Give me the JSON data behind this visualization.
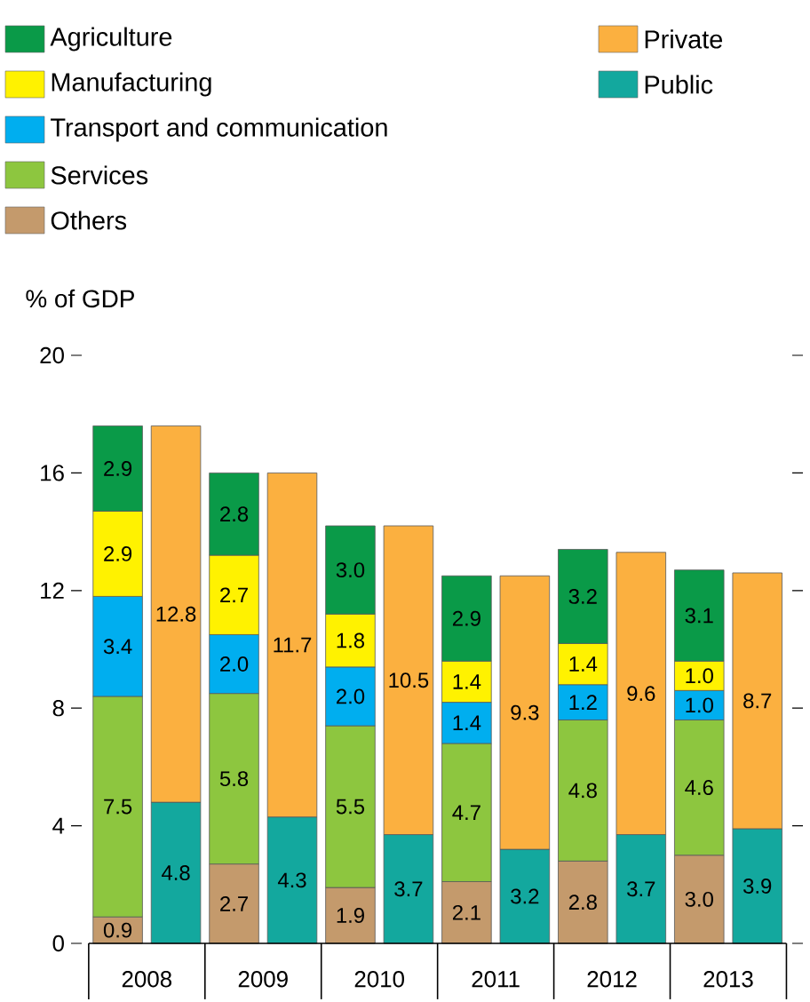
{
  "chart_data": {
    "type": "bar",
    "stacked": true,
    "ylabel": "% of GDP",
    "categories": [
      "2008",
      null,
      "2009",
      null,
      "2010",
      null,
      "2011",
      null,
      "2012",
      null,
      "2013",
      null
    ],
    "series": [
      {
        "name": "Others",
        "color": "#c49a6c",
        "values": [
          0.9,
          null,
          2.7,
          null,
          1.9,
          null,
          2.1,
          null,
          2.8,
          null,
          3.0,
          null
        ],
        "value_labels": [
          "0.9",
          null,
          "2.7",
          null,
          "1.9",
          null,
          "2.1",
          null,
          "2.8",
          null,
          "3.0",
          null
        ]
      },
      {
        "name": "Services",
        "color": "#8dc63f",
        "values": [
          7.5,
          null,
          5.8,
          null,
          5.5,
          null,
          4.7,
          null,
          4.8,
          null,
          4.6,
          null
        ],
        "value_labels": [
          "7.5",
          null,
          "5.8",
          null,
          "5.5",
          null,
          "4.7",
          null,
          "4.8",
          null,
          "4.6",
          null
        ]
      },
      {
        "name": "Transport and communication",
        "color": "#00aeef",
        "values": [
          3.4,
          null,
          2.0,
          null,
          2.0,
          null,
          1.4,
          null,
          1.2,
          null,
          1.0,
          null
        ],
        "value_labels": [
          "3.4",
          null,
          "2.0",
          null,
          "2.0",
          null,
          "1.4",
          null,
          "1.2",
          null,
          "1.0",
          null
        ]
      },
      {
        "name": "Manufacturing",
        "color": "#fff200",
        "values": [
          2.9,
          null,
          2.7,
          null,
          1.8,
          null,
          1.4,
          null,
          1.4,
          null,
          1.0,
          null
        ],
        "value_labels": [
          "2.9",
          null,
          "2.7",
          null,
          "1.8",
          null,
          "1.4",
          null,
          "1.4",
          null,
          "1.0",
          null
        ]
      },
      {
        "name": "Agriculture",
        "color": "#0a9a48",
        "values": [
          2.9,
          null,
          2.8,
          null,
          3.0,
          null,
          2.9,
          null,
          3.2,
          null,
          3.1,
          null
        ],
        "value_labels": [
          "2.9",
          null,
          "2.8",
          null,
          "3.0",
          null,
          "2.9",
          null,
          "3.2",
          null,
          "3.1",
          null
        ]
      },
      {
        "name": "Public",
        "color": "#13a89e",
        "values": [
          null,
          4.8,
          null,
          4.3,
          null,
          3.7,
          null,
          3.2,
          null,
          3.7,
          null,
          3.9
        ],
        "value_labels": [
          null,
          "4.8",
          null,
          "4.3",
          null,
          "3.7",
          null,
          "3.2",
          null,
          "3.7",
          null,
          "3.9"
        ]
      },
      {
        "name": "Private",
        "color": "#fbb040",
        "values": [
          null,
          12.8,
          null,
          11.7,
          null,
          10.5,
          null,
          9.3,
          null,
          9.6,
          null,
          8.7
        ],
        "value_labels": [
          null,
          "12.8",
          null,
          "11.7",
          null,
          "10.5",
          null,
          "9.3",
          null,
          "9.6",
          null,
          "8.7"
        ]
      }
    ],
    "ylim": [
      0,
      20
    ],
    "yticks": [
      0,
      4,
      8,
      12,
      16,
      20
    ],
    "legend": "top"
  }
}
